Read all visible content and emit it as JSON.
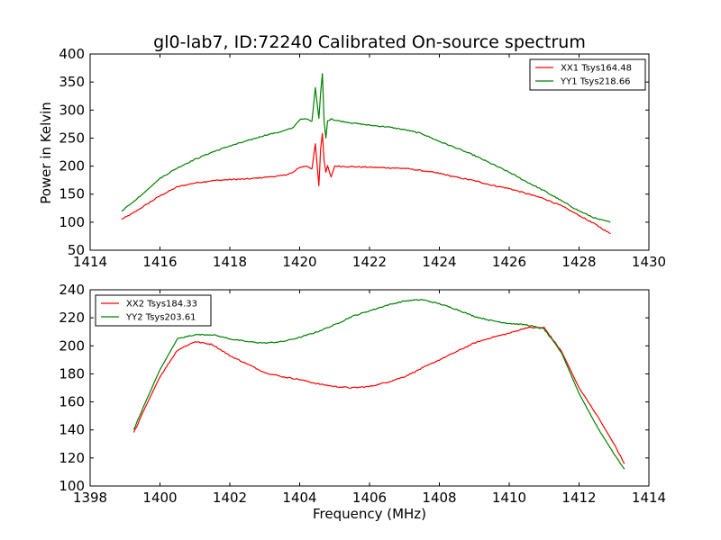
{
  "figure": {
    "title": "gl0-lab7, ID:72240 Calibrated On-source spectrum",
    "xlabel": "Frequency (MHz)",
    "ylabel_top": "Power in Kelvin"
  },
  "colors": {
    "red": "#ff0000",
    "green": "#008000",
    "axes": "#000000",
    "background": "#ffffff"
  },
  "chart_data": [
    {
      "type": "line",
      "title": "gl0-lab7, ID:72240 Calibrated On-source spectrum",
      "xlabel": "",
      "ylabel": "Power in Kelvin",
      "xlim": [
        1414,
        1430
      ],
      "ylim": [
        50,
        400
      ],
      "xticks": [
        1414,
        1416,
        1418,
        1420,
        1422,
        1424,
        1426,
        1428,
        1430
      ],
      "yticks": [
        50,
        100,
        150,
        200,
        250,
        300,
        350,
        400
      ],
      "grid": false,
      "legend_position": "top-right",
      "series": [
        {
          "name": "XX1 Tsys164.48",
          "color": "#ff0000",
          "x": [
            1414.9,
            1415.2,
            1415.5,
            1416.0,
            1416.5,
            1417.0,
            1417.5,
            1418.0,
            1418.5,
            1419.0,
            1419.5,
            1419.8,
            1420.0,
            1420.2,
            1420.35,
            1420.45,
            1420.55,
            1420.6,
            1420.65,
            1420.7,
            1420.75,
            1420.8,
            1420.9,
            1421.0,
            1421.5,
            1422.0,
            1422.5,
            1423.0,
            1423.5,
            1424.0,
            1424.5,
            1425.0,
            1425.5,
            1426.0,
            1426.5,
            1427.0,
            1427.5,
            1428.0,
            1428.5,
            1428.9
          ],
          "y": [
            105,
            115,
            127,
            147,
            163,
            170,
            174,
            176,
            177,
            180,
            183,
            188,
            198,
            200,
            195,
            240,
            165,
            230,
            258,
            210,
            190,
            200,
            180,
            200,
            199,
            198,
            197,
            196,
            192,
            187,
            180,
            174,
            166,
            160,
            151,
            142,
            129,
            112,
            95,
            79
          ]
        },
        {
          "name": "YY1 Tsys218.66",
          "color": "#008000",
          "x": [
            1414.9,
            1415.2,
            1415.5,
            1416.0,
            1416.5,
            1417.0,
            1417.5,
            1418.0,
            1418.5,
            1419.0,
            1419.5,
            1419.8,
            1420.0,
            1420.2,
            1420.35,
            1420.45,
            1420.55,
            1420.6,
            1420.65,
            1420.7,
            1420.75,
            1420.8,
            1420.9,
            1421.0,
            1421.5,
            1422.0,
            1422.5,
            1423.0,
            1423.5,
            1424.0,
            1424.5,
            1425.0,
            1425.5,
            1426.0,
            1426.5,
            1427.0,
            1427.5,
            1428.0,
            1428.5,
            1428.9
          ],
          "y": [
            120,
            135,
            150,
            178,
            197,
            212,
            225,
            236,
            245,
            255,
            262,
            268,
            283,
            284,
            280,
            340,
            285,
            330,
            365,
            280,
            250,
            280,
            285,
            282,
            277,
            273,
            270,
            265,
            258,
            244,
            232,
            219,
            204,
            189,
            172,
            156,
            138,
            120,
            106,
            100
          ]
        }
      ]
    },
    {
      "type": "line",
      "title": "",
      "xlabel": "Frequency (MHz)",
      "ylabel": "",
      "xlim": [
        1398,
        1414
      ],
      "ylim": [
        100,
        240
      ],
      "xticks": [
        1398,
        1400,
        1402,
        1404,
        1406,
        1408,
        1410,
        1412,
        1414
      ],
      "yticks": [
        100,
        120,
        140,
        160,
        180,
        200,
        220,
        240
      ],
      "grid": false,
      "legend_position": "top-left",
      "series": [
        {
          "name": "XX2 Tsys184.33",
          "color": "#ff0000",
          "x": [
            1399.25,
            1399.5,
            1400.0,
            1400.5,
            1401.0,
            1401.5,
            1402.0,
            1402.5,
            1403.0,
            1403.5,
            1404.0,
            1404.5,
            1405.0,
            1405.5,
            1406.0,
            1406.5,
            1407.0,
            1407.5,
            1408.0,
            1408.5,
            1409.0,
            1409.5,
            1410.0,
            1410.5,
            1411.0,
            1411.5,
            1412.0,
            1412.5,
            1413.0,
            1413.3
          ],
          "y": [
            138,
            152,
            178,
            197,
            203,
            201,
            193,
            187,
            181,
            178,
            176,
            173,
            171,
            170,
            171,
            174,
            178,
            184,
            190,
            196,
            202,
            206,
            209,
            213,
            213,
            196,
            170,
            151,
            130,
            116
          ]
        },
        {
          "name": "YY2 Tsys203.61",
          "color": "#008000",
          "x": [
            1399.25,
            1399.5,
            1400.0,
            1400.5,
            1401.0,
            1401.5,
            1402.0,
            1402.5,
            1403.0,
            1403.5,
            1404.0,
            1404.5,
            1405.0,
            1405.5,
            1406.0,
            1406.5,
            1407.0,
            1407.5,
            1408.0,
            1408.5,
            1409.0,
            1409.5,
            1410.0,
            1410.5,
            1411.0,
            1411.5,
            1412.0,
            1412.5,
            1413.0,
            1413.3
          ],
          "y": [
            140,
            155,
            183,
            205,
            208,
            208,
            205,
            203,
            202,
            203,
            206,
            210,
            215,
            221,
            225,
            229,
            232,
            233,
            230,
            226,
            221,
            218,
            216,
            215,
            212,
            195,
            166,
            143,
            123,
            112
          ]
        }
      ]
    }
  ]
}
